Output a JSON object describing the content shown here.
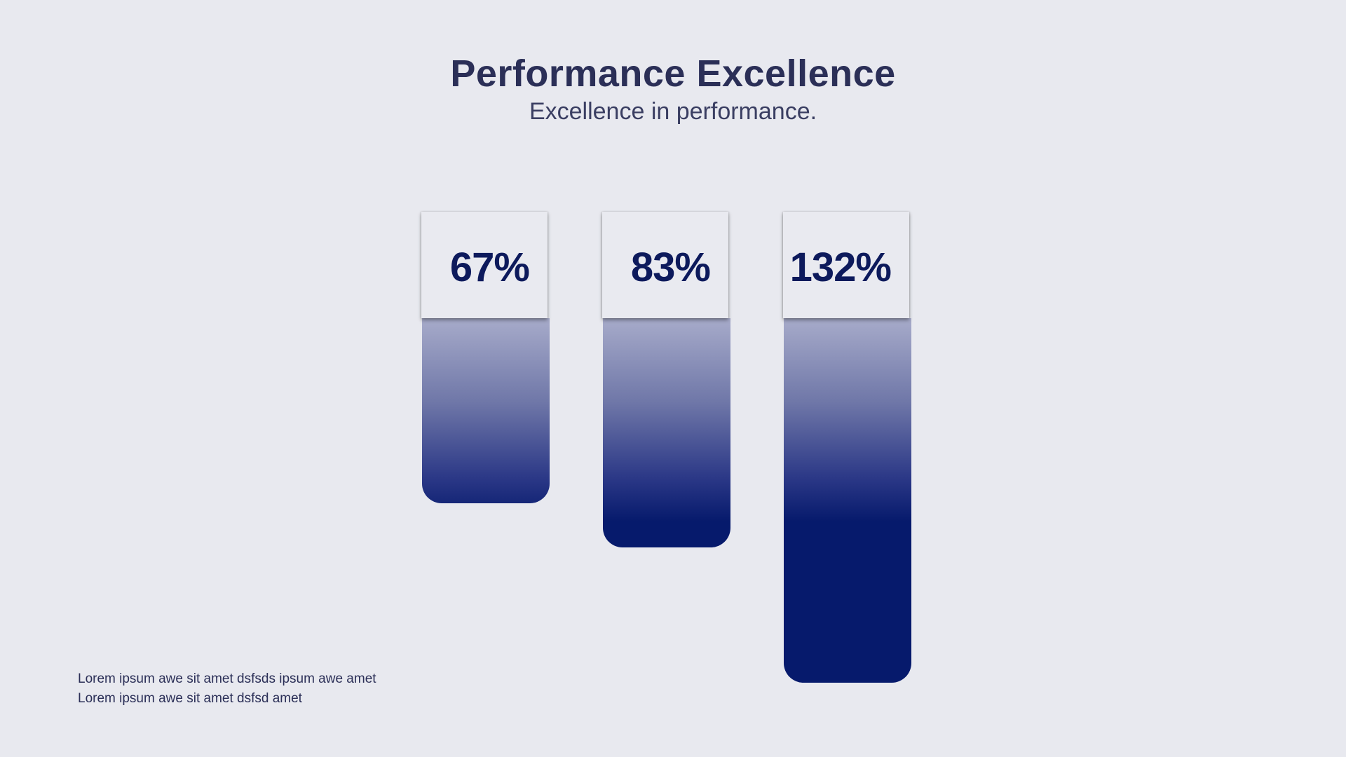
{
  "header": {
    "title": "Performance Excellence",
    "subtitle": "Excellence in performance."
  },
  "chart_data": {
    "type": "bar",
    "title": "Performance Excellence",
    "subtitle": "Excellence in performance.",
    "categories": [
      "",
      "",
      ""
    ],
    "values": [
      67,
      83,
      132
    ],
    "value_labels": [
      "67%",
      "83%",
      "132%"
    ],
    "unit": "%",
    "ylim": [
      0,
      132
    ],
    "orientation": "vertical-hanging",
    "grid": false,
    "legend": "none"
  },
  "footer": {
    "lines": [
      "Lorem ipsum awe sit amet dsfsds ipsum awe amet",
      "Lorem ipsum awe sit amet dsfsd amet"
    ]
  },
  "colors": {
    "background": "#e8e9ef",
    "title": "#2b2f57",
    "value_text": "#0d1a5c",
    "bar_top": "#a7abca",
    "bar_bottom": "#061a6c"
  }
}
